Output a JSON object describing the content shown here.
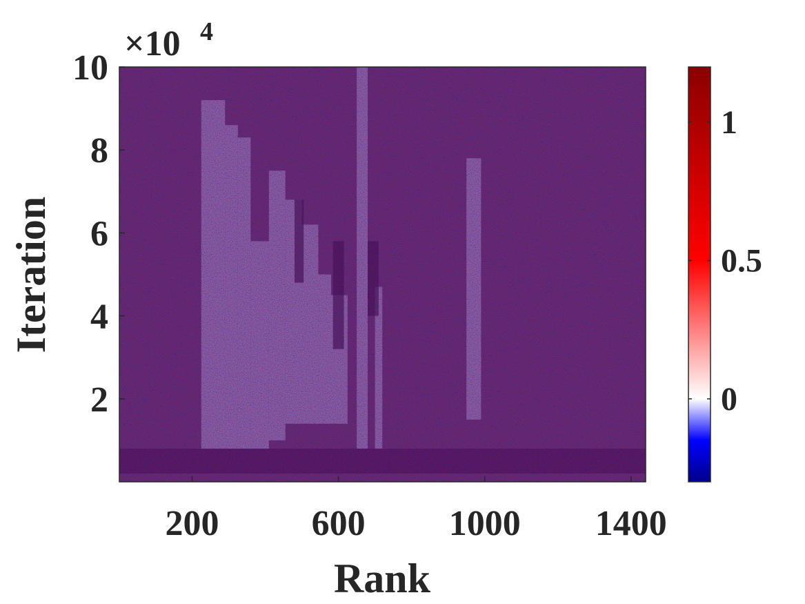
{
  "chart_data": {
    "type": "heatmap",
    "xlabel": "Rank",
    "ylabel": "Iteration",
    "x_range": [
      1,
      1440
    ],
    "y_range": [
      0,
      100000
    ],
    "x_ticks": [
      200,
      600,
      1000,
      1400
    ],
    "x_tick_labels": [
      "200",
      "600",
      "1000",
      "1400"
    ],
    "y_ticks": [
      20000,
      40000,
      60000,
      80000,
      100000
    ],
    "y_tick_labels": [
      "2",
      "4",
      "6",
      "8",
      "10"
    ],
    "y_exponent_label": "×10",
    "y_exponent_power": "4",
    "colorbar": {
      "range": [
        -0.3,
        1.2
      ],
      "ticks": [
        0,
        0.5,
        1
      ],
      "tick_labels": [
        "0",
        "0.5",
        "1"
      ],
      "colormap": [
        "#00008b",
        "#0000ff",
        "#ffffff",
        "#ff0000",
        "#8b0000"
      ]
    },
    "background_color": "#5a2e6e",
    "features": {
      "bottom_band": {
        "x_range": [
          1,
          1440
        ],
        "y_range": [
          2000,
          8000
        ],
        "color": "#4a1d5e"
      },
      "light_columns": [
        {
          "x_range": [
            225,
            290
          ],
          "y_range": [
            8000,
            92000
          ]
        },
        {
          "x_range": [
            290,
            325
          ],
          "y_range": [
            8000,
            86000
          ]
        },
        {
          "x_range": [
            325,
            360
          ],
          "y_range": [
            8000,
            83000
          ]
        },
        {
          "x_range": [
            360,
            410
          ],
          "y_range": [
            8000,
            58000
          ]
        },
        {
          "x_range": [
            410,
            455
          ],
          "y_range": [
            10000,
            75000
          ]
        },
        {
          "x_range": [
            455,
            500
          ],
          "y_range": [
            14000,
            68000
          ]
        },
        {
          "x_range": [
            500,
            545
          ],
          "y_range": [
            14000,
            62000
          ]
        },
        {
          "x_range": [
            545,
            580
          ],
          "y_range": [
            14000,
            50000
          ]
        },
        {
          "x_range": [
            580,
            625
          ],
          "y_range": [
            14000,
            45000
          ]
        },
        {
          "x_range": [
            650,
            680
          ],
          "y_range": [
            8000,
            100000
          ]
        },
        {
          "x_range": [
            700,
            720
          ],
          "y_range": [
            8000,
            47000
          ]
        },
        {
          "x_range": [
            950,
            990
          ],
          "y_range": [
            15000,
            78000
          ]
        }
      ],
      "dark_blocks": [
        {
          "x_range": [
            480,
            505
          ],
          "y_range": [
            48000,
            68000
          ]
        },
        {
          "x_range": [
            585,
            615
          ],
          "y_range": [
            32000,
            58000
          ]
        },
        {
          "x_range": [
            680,
            710
          ],
          "y_range": [
            40000,
            58000
          ]
        }
      ]
    }
  }
}
